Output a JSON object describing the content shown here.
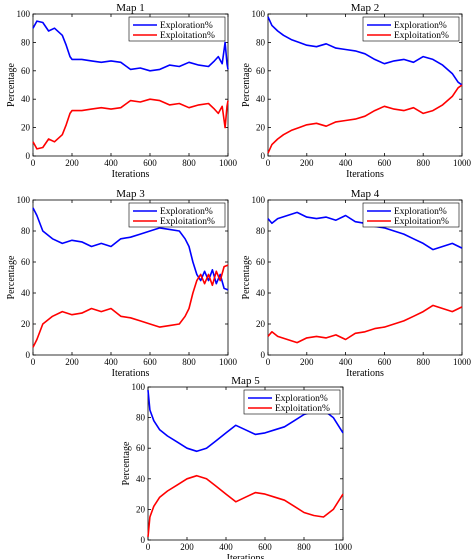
{
  "chart_data": [
    {
      "type": "line",
      "title": "Map 1",
      "xlabel": "Iterations",
      "ylabel": "Percentage",
      "xlim": [
        0,
        1000
      ],
      "ylim": [
        0,
        100
      ],
      "xticks": [
        0,
        200,
        400,
        600,
        800,
        1000
      ],
      "yticks": [
        0,
        20,
        40,
        60,
        80,
        100
      ],
      "grid": false,
      "legend": "top-right",
      "series": [
        {
          "name": "Exploration%",
          "color": "#0000ff",
          "x": [
            0,
            20,
            50,
            80,
            110,
            150,
            170,
            190,
            200,
            250,
            300,
            350,
            400,
            450,
            500,
            550,
            600,
            650,
            700,
            750,
            800,
            850,
            900,
            930,
            950,
            970,
            985,
            995,
            1000
          ],
          "y": [
            90,
            95,
            94,
            88,
            90,
            85,
            78,
            70,
            68,
            68,
            67,
            66,
            67,
            66,
            61,
            62,
            60,
            61,
            64,
            63,
            66,
            64,
            63,
            67,
            70,
            65,
            80,
            65,
            61
          ]
        },
        {
          "name": "Exploitation%",
          "color": "#ff0000",
          "x": [
            0,
            20,
            50,
            80,
            110,
            150,
            170,
            190,
            200,
            250,
            300,
            350,
            400,
            450,
            500,
            550,
            600,
            650,
            700,
            750,
            800,
            850,
            900,
            930,
            950,
            970,
            985,
            995,
            1000
          ],
          "y": [
            10,
            5,
            6,
            12,
            10,
            15,
            22,
            30,
            32,
            32,
            33,
            34,
            33,
            34,
            39,
            38,
            40,
            39,
            36,
            37,
            34,
            36,
            37,
            33,
            30,
            35,
            20,
            35,
            39
          ]
        }
      ]
    },
    {
      "type": "line",
      "title": "Map 2",
      "xlabel": "Iterations",
      "ylabel": "Percentage",
      "xlim": [
        0,
        1000
      ],
      "ylim": [
        0,
        100
      ],
      "xticks": [
        0,
        200,
        400,
        600,
        800,
        1000
      ],
      "yticks": [
        0,
        20,
        40,
        60,
        80,
        100
      ],
      "grid": false,
      "legend": "top-right",
      "series": [
        {
          "name": "Exploration%",
          "color": "#0000ff",
          "x": [
            0,
            20,
            50,
            80,
            120,
            160,
            200,
            250,
            300,
            350,
            400,
            450,
            500,
            550,
            600,
            650,
            700,
            750,
            800,
            850,
            900,
            950,
            980,
            1000
          ],
          "y": [
            98,
            92,
            88,
            85,
            82,
            80,
            78,
            77,
            79,
            76,
            75,
            74,
            72,
            68,
            65,
            67,
            68,
            66,
            70,
            68,
            64,
            58,
            52,
            50
          ]
        },
        {
          "name": "Exploitation%",
          "color": "#ff0000",
          "x": [
            0,
            20,
            50,
            80,
            120,
            160,
            200,
            250,
            300,
            350,
            400,
            450,
            500,
            550,
            600,
            650,
            700,
            750,
            800,
            850,
            900,
            950,
            980,
            1000
          ],
          "y": [
            2,
            8,
            12,
            15,
            18,
            20,
            22,
            23,
            21,
            24,
            25,
            26,
            28,
            32,
            35,
            33,
            32,
            34,
            30,
            32,
            36,
            42,
            48,
            50
          ]
        }
      ]
    },
    {
      "type": "line",
      "title": "Map 3",
      "xlabel": "Iterations",
      "ylabel": "Percentage",
      "xlim": [
        0,
        1000
      ],
      "ylim": [
        0,
        100
      ],
      "xticks": [
        0,
        200,
        400,
        600,
        800,
        1000
      ],
      "yticks": [
        0,
        20,
        40,
        60,
        80,
        100
      ],
      "grid": false,
      "legend": "top-right",
      "series": [
        {
          "name": "Exploration%",
          "color": "#0000ff",
          "x": [
            0,
            20,
            50,
            100,
            150,
            200,
            250,
            300,
            350,
            400,
            450,
            500,
            550,
            600,
            650,
            700,
            750,
            780,
            800,
            820,
            840,
            860,
            880,
            900,
            920,
            940,
            960,
            980,
            1000
          ],
          "y": [
            95,
            90,
            80,
            75,
            72,
            74,
            73,
            70,
            72,
            70,
            75,
            76,
            78,
            80,
            82,
            81,
            80,
            75,
            70,
            60,
            52,
            48,
            54,
            48,
            55,
            46,
            52,
            43,
            42
          ]
        },
        {
          "name": "Exploitation%",
          "color": "#ff0000",
          "x": [
            0,
            20,
            50,
            100,
            150,
            200,
            250,
            300,
            350,
            400,
            450,
            500,
            550,
            600,
            650,
            700,
            750,
            780,
            800,
            820,
            840,
            860,
            880,
            900,
            920,
            940,
            960,
            980,
            1000
          ],
          "y": [
            5,
            10,
            20,
            25,
            28,
            26,
            27,
            30,
            28,
            30,
            25,
            24,
            22,
            20,
            18,
            19,
            20,
            25,
            30,
            40,
            48,
            52,
            46,
            52,
            45,
            54,
            48,
            57,
            58
          ]
        }
      ]
    },
    {
      "type": "line",
      "title": "Map 4",
      "xlabel": "Iterations",
      "ylabel": "Percentage",
      "xlim": [
        0,
        1000
      ],
      "ylim": [
        0,
        100
      ],
      "xticks": [
        0,
        200,
        400,
        600,
        800,
        1000
      ],
      "yticks": [
        0,
        20,
        40,
        60,
        80,
        100
      ],
      "grid": false,
      "legend": "top-right",
      "series": [
        {
          "name": "Exploration%",
          "color": "#0000ff",
          "x": [
            0,
            20,
            50,
            100,
            150,
            200,
            250,
            300,
            350,
            400,
            450,
            500,
            550,
            600,
            650,
            700,
            750,
            800,
            850,
            900,
            950,
            1000
          ],
          "y": [
            88,
            85,
            88,
            90,
            92,
            89,
            88,
            89,
            87,
            90,
            86,
            85,
            83,
            82,
            80,
            78,
            75,
            72,
            68,
            70,
            72,
            69
          ]
        },
        {
          "name": "Exploitation%",
          "color": "#ff0000",
          "x": [
            0,
            20,
            50,
            100,
            150,
            200,
            250,
            300,
            350,
            400,
            450,
            500,
            550,
            600,
            650,
            700,
            750,
            800,
            850,
            900,
            950,
            1000
          ],
          "y": [
            12,
            15,
            12,
            10,
            8,
            11,
            12,
            11,
            13,
            10,
            14,
            15,
            17,
            18,
            20,
            22,
            25,
            28,
            32,
            30,
            28,
            31
          ]
        }
      ]
    },
    {
      "type": "line",
      "title": "Map 5",
      "xlabel": "Iterations",
      "ylabel": "Percentage",
      "xlim": [
        0,
        1000
      ],
      "ylim": [
        0,
        100
      ],
      "xticks": [
        0,
        200,
        400,
        600,
        800,
        1000
      ],
      "yticks": [
        0,
        20,
        40,
        60,
        80,
        100
      ],
      "grid": false,
      "legend": "top-right",
      "series": [
        {
          "name": "Exploration%",
          "color": "#0000ff",
          "x": [
            0,
            10,
            30,
            60,
            100,
            150,
            200,
            250,
            300,
            350,
            400,
            450,
            500,
            550,
            600,
            650,
            700,
            750,
            800,
            850,
            900,
            950,
            1000
          ],
          "y": [
            98,
            85,
            78,
            72,
            68,
            64,
            60,
            58,
            60,
            65,
            70,
            75,
            72,
            69,
            70,
            72,
            74,
            78,
            82,
            84,
            85,
            80,
            70
          ]
        },
        {
          "name": "Exploitation%",
          "color": "#ff0000",
          "x": [
            0,
            10,
            30,
            60,
            100,
            150,
            200,
            250,
            300,
            350,
            400,
            450,
            500,
            550,
            600,
            650,
            700,
            750,
            800,
            850,
            900,
            950,
            1000
          ],
          "y": [
            2,
            15,
            22,
            28,
            32,
            36,
            40,
            42,
            40,
            35,
            30,
            25,
            28,
            31,
            30,
            28,
            26,
            22,
            18,
            16,
            15,
            20,
            30
          ]
        }
      ]
    }
  ]
}
